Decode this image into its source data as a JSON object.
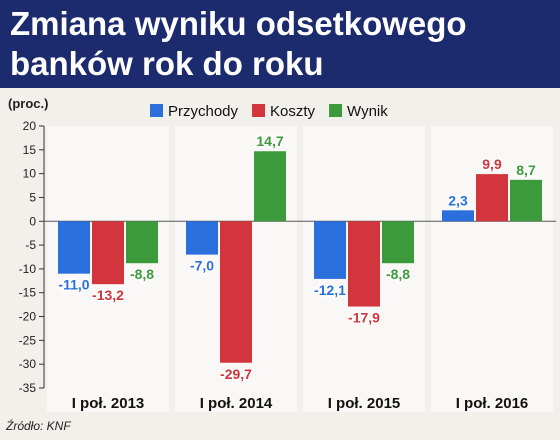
{
  "colors": {
    "header_bg": "#1c2a6e",
    "przychody": "#2a6fdb",
    "koszty": "#d2353b",
    "wynik": "#3d9a3a"
  },
  "chart_data": {
    "type": "bar",
    "title_lines": [
      "Zmiana wyniku odsetkowego",
      "banków rok do roku"
    ],
    "ylabel": "(proc.)",
    "ylim": [
      -35,
      20
    ],
    "yticks": [
      20,
      15,
      10,
      5,
      0,
      -5,
      -10,
      -15,
      -20,
      -25,
      -30,
      -35
    ],
    "categories": [
      "I poł. 2013",
      "I poł. 2014",
      "I poł. 2015",
      "I poł. 2016"
    ],
    "legend_position": "top",
    "grid": false,
    "series": [
      {
        "name": "Przychody",
        "color": "#2a6fdb",
        "values": [
          -11.0,
          -7.0,
          -12.1,
          2.3
        ],
        "labels": [
          "-11,0",
          "-7,0",
          "-12,1",
          "2,3"
        ]
      },
      {
        "name": "Koszty",
        "color": "#d2353b",
        "values": [
          -13.2,
          -29.7,
          -17.9,
          9.9
        ],
        "labels": [
          "-13,2",
          "-29,7",
          "-17,9",
          "9,9"
        ]
      },
      {
        "name": "Wynik",
        "color": "#3d9a3a",
        "values": [
          -8.8,
          14.7,
          -8.8,
          8.7
        ],
        "labels": [
          "-8,8",
          "14,7",
          "-8,8",
          "8,7"
        ]
      }
    ],
    "source": "Źródło: KNF"
  }
}
